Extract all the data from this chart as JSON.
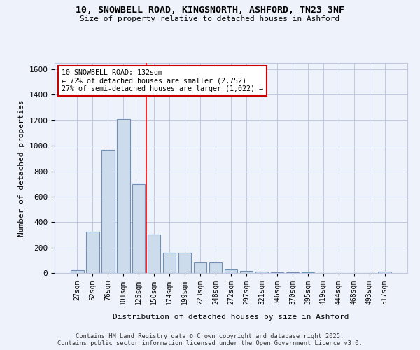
{
  "title_line1": "10, SNOWBELL ROAD, KINGSNORTH, ASHFORD, TN23 3NF",
  "title_line2": "Size of property relative to detached houses in Ashford",
  "xlabel": "Distribution of detached houses by size in Ashford",
  "ylabel": "Number of detached properties",
  "categories": [
    "27sqm",
    "52sqm",
    "76sqm",
    "101sqm",
    "125sqm",
    "150sqm",
    "174sqm",
    "199sqm",
    "223sqm",
    "248sqm",
    "272sqm",
    "297sqm",
    "321sqm",
    "346sqm",
    "370sqm",
    "395sqm",
    "419sqm",
    "444sqm",
    "468sqm",
    "493sqm",
    "517sqm"
  ],
  "values": [
    22,
    325,
    970,
    1210,
    700,
    305,
    160,
    160,
    80,
    80,
    25,
    15,
    12,
    8,
    5,
    3,
    2,
    2,
    2,
    2,
    10
  ],
  "bar_color": "#ccdcec",
  "bar_edge_color": "#7090b8",
  "red_line_index": 4.5,
  "annotation_text": "10 SNOWBELL ROAD: 132sqm\n← 72% of detached houses are smaller (2,752)\n27% of semi-detached houses are larger (1,022) →",
  "annotation_box_color": "#ffffff",
  "annotation_border_color": "#cc0000",
  "ylim": [
    0,
    1650
  ],
  "yticks": [
    0,
    200,
    400,
    600,
    800,
    1000,
    1200,
    1400,
    1600
  ],
  "footer_line1": "Contains HM Land Registry data © Crown copyright and database right 2025.",
  "footer_line2": "Contains public sector information licensed under the Open Government Licence v3.0.",
  "background_color": "#eef2fb",
  "grid_color": "#c0c8e0"
}
